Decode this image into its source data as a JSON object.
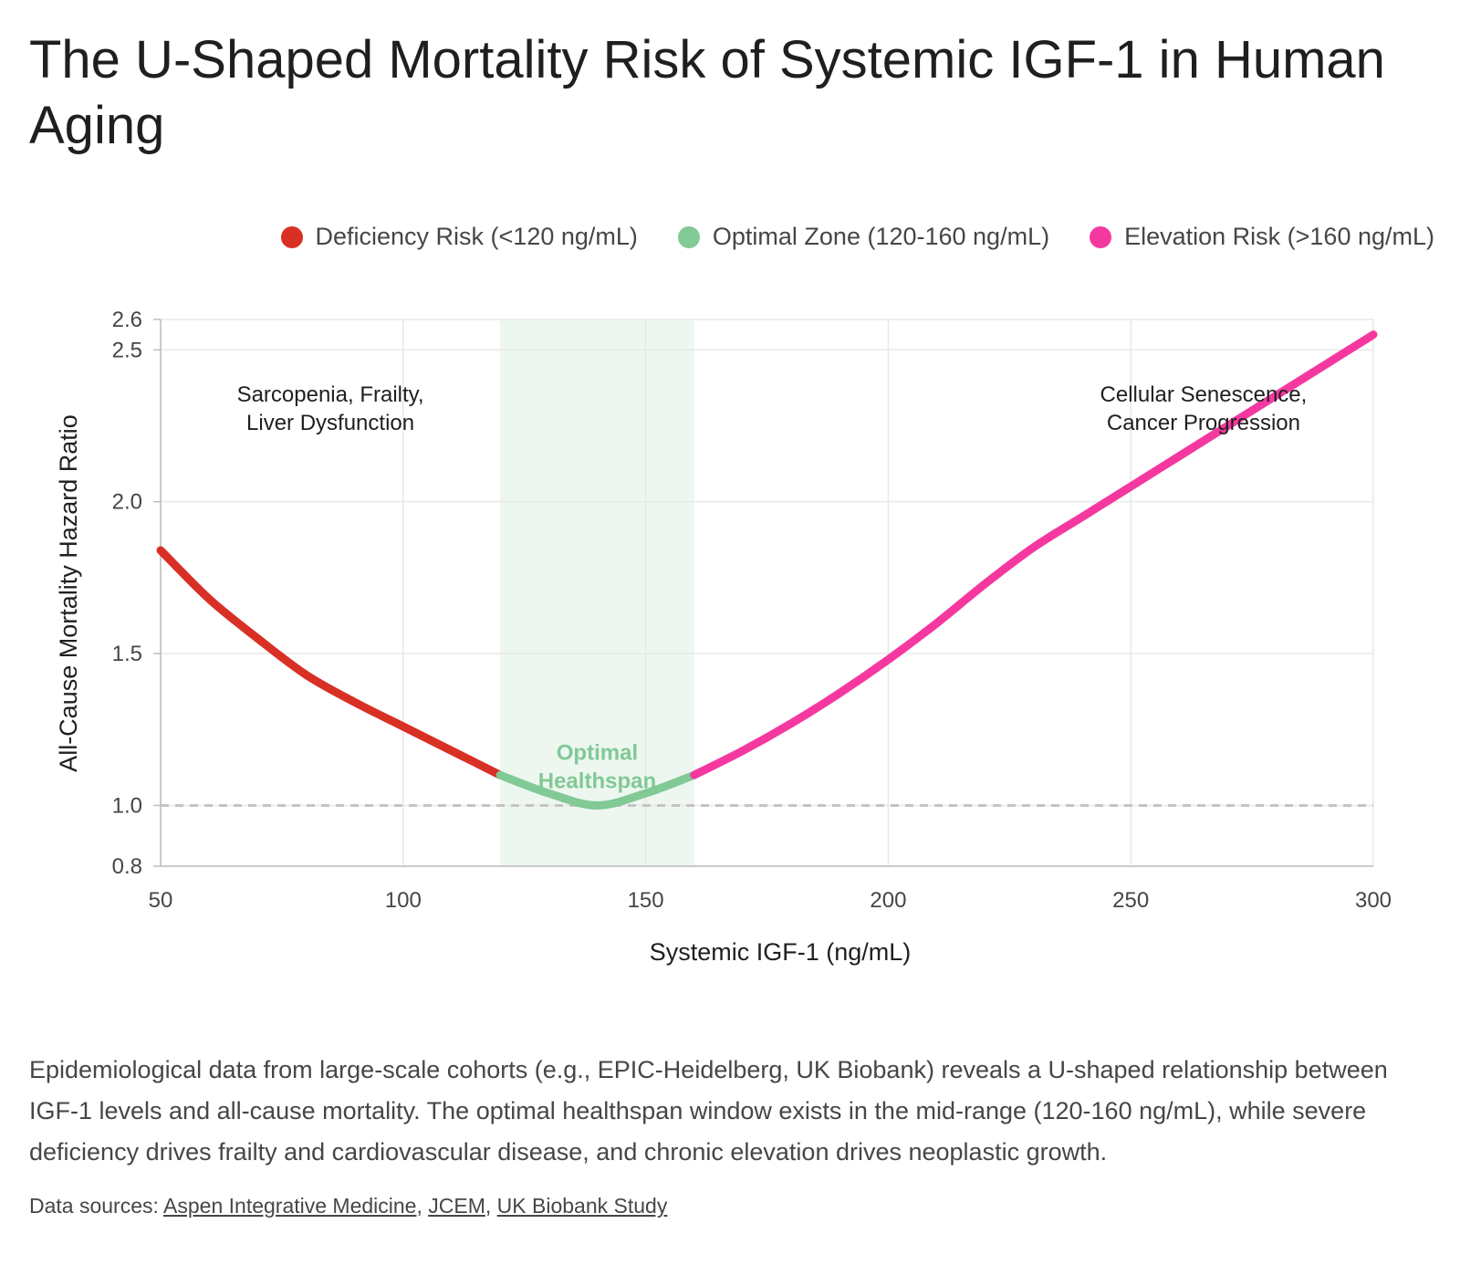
{
  "title": "The U-Shaped Mortality Risk of Systemic IGF-1 in Human Aging",
  "colors": {
    "deficiency": "#d93025",
    "optimal": "#81c995",
    "elevation": "#f538a0",
    "optimal_band": "#e6f4ea",
    "reference_line": "#c4c4c4"
  },
  "legend": [
    {
      "label": "Deficiency Risk (<120 ng/mL)",
      "color": "#d93025"
    },
    {
      "label": "Optimal Zone (120-160 ng/mL)",
      "color": "#81c995"
    },
    {
      "label": "Elevation Risk (>160 ng/mL)",
      "color": "#f538a0"
    }
  ],
  "chart_data": {
    "type": "line",
    "title": "The U-Shaped Mortality Risk of Systemic IGF-1 in Human Aging",
    "xlabel": "Systemic IGF-1 (ng/mL)",
    "ylabel": "All-Cause Mortality Hazard Ratio",
    "xlim": [
      50,
      300
    ],
    "ylim": [
      0.8,
      2.6
    ],
    "xticks": [
      50,
      100,
      150,
      200,
      250,
      300
    ],
    "yticks": [
      0.8,
      1.0,
      1.5,
      2.0,
      2.5,
      2.6
    ],
    "grid": true,
    "legend_position": "top-right",
    "reference_line_y": 1.0,
    "shaded_region": {
      "x": [
        120,
        160
      ]
    },
    "series": [
      {
        "name": "Deficiency Risk (<120 ng/mL)",
        "color": "#d93025",
        "x": [
          50,
          60,
          70,
          80,
          90,
          100,
          110,
          120
        ],
        "y": [
          1.84,
          1.68,
          1.55,
          1.43,
          1.34,
          1.26,
          1.18,
          1.1
        ]
      },
      {
        "name": "Optimal Zone (120-160 ng/mL)",
        "color": "#81c995",
        "x": [
          120,
          130,
          140,
          150,
          160
        ],
        "y": [
          1.1,
          1.04,
          1.0,
          1.04,
          1.1
        ]
      },
      {
        "name": "Elevation Risk (>160 ng/mL)",
        "color": "#f538a0",
        "x": [
          160,
          170,
          180,
          190,
          200,
          210,
          220,
          230,
          240,
          250,
          260,
          270,
          280,
          290,
          300
        ],
        "y": [
          1.1,
          1.18,
          1.27,
          1.37,
          1.48,
          1.6,
          1.73,
          1.85,
          1.95,
          2.05,
          2.15,
          2.25,
          2.35,
          2.45,
          2.55
        ]
      }
    ],
    "annotations": [
      {
        "text_lines": [
          "Sarcopenia, Frailty,",
          "Liver Dysfunction"
        ],
        "x": 85,
        "y": 2.33
      },
      {
        "text_lines": [
          "Cellular Senescence,",
          "Cancer Progression"
        ],
        "x": 265,
        "y": 2.33
      },
      {
        "text_lines": [
          "Optimal",
          "Healthspan"
        ],
        "x": 140,
        "y": 1.15,
        "color": "#81c995"
      }
    ]
  },
  "description": "Epidemiological data from large-scale cohorts (e.g., EPIC-Heidelberg, UK Biobank) reveals a U-shaped relationship between IGF-1 levels and all-cause mortality. The optimal healthspan window exists in the mid-range (120-160 ng/mL), while severe deficiency drives frailty and cardiovascular disease, and chronic elevation drives neoplastic growth.",
  "sources": {
    "prefix": "Data sources:",
    "links": [
      "Aspen Integrative Medicine",
      "JCEM",
      "UK Biobank Study"
    ]
  }
}
